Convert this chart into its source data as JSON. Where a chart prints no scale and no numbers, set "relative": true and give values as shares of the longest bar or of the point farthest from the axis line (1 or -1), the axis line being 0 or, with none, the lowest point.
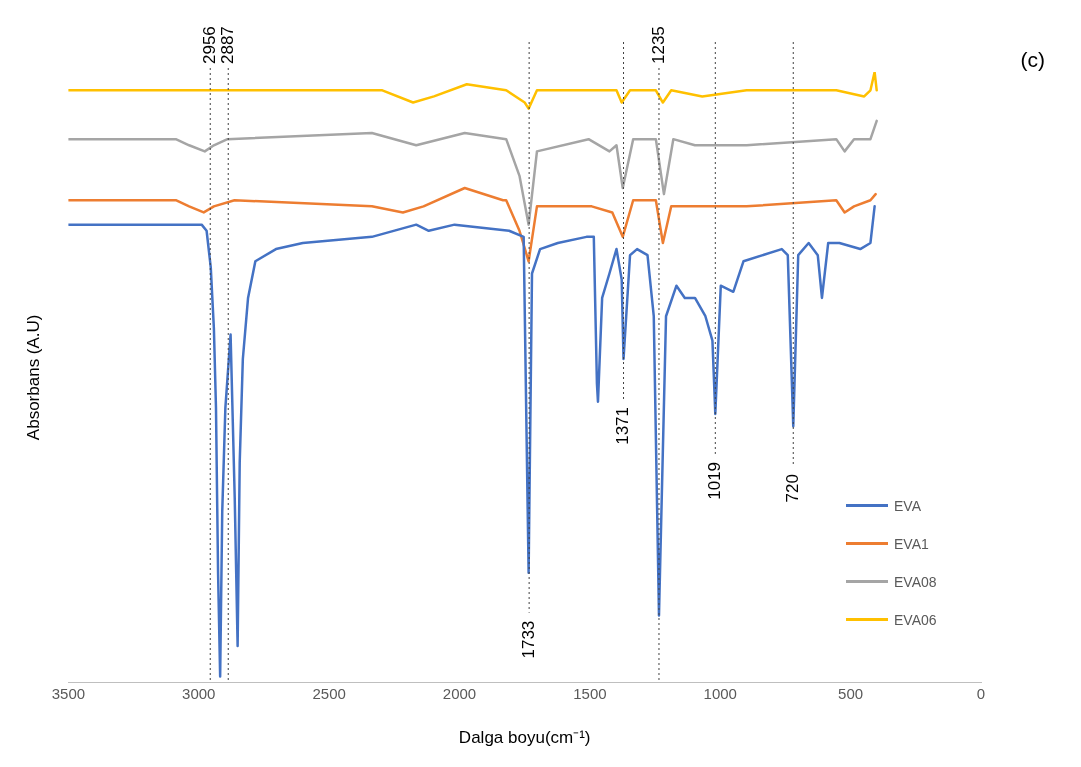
{
  "chart_data": {
    "type": "line",
    "relative": true,
    "xlabel": "Dalga boyu(cm⁻¹)",
    "ylabel": "Absorbans (A.U)",
    "annotations": [
      "(c)"
    ],
    "xlim": [
      3500,
      0
    ],
    "xticks": [
      3500,
      3000,
      2500,
      2000,
      1500,
      1000,
      500,
      0
    ],
    "grid": false,
    "legend": "bottom right",
    "marker": "none",
    "line_style": "solid",
    "series": [
      {
        "name": "EVA",
        "color": "#4472c4",
        "x": [
          3500,
          3088,
          2989,
          2970,
          2954,
          2942,
          2934,
          2926,
          2918,
          2910,
          2898,
          2878,
          2862,
          2851,
          2843,
          2831,
          2811,
          2783,
          2704,
          2601,
          2336,
          2166,
          2118,
          2019,
          1810,
          1754,
          1735,
          1722,
          1691,
          1623,
          1513,
          1485,
          1473,
          1469,
          1453,
          1425,
          1398,
          1378,
          1371,
          1346,
          1319,
          1279,
          1255,
          1235,
          1208,
          1168,
          1136,
          1097,
          1057,
          1030,
          1019,
          998,
          950,
          911,
          764,
          741,
          720,
          701,
          661,
          626,
          610,
          586,
          543,
          463,
          424,
          408
        ],
        "values": [
          0.75,
          0.75,
          0.75,
          0.74,
          0.68,
          0.58,
          0.45,
          0.18,
          0.01,
          0.28,
          0.45,
          0.57,
          0.3,
          0.06,
          0.36,
          0.53,
          0.63,
          0.69,
          0.71,
          0.72,
          0.73,
          0.75,
          0.74,
          0.75,
          0.74,
          0.73,
          0.18,
          0.67,
          0.71,
          0.72,
          0.73,
          0.73,
          0.49,
          0.46,
          0.63,
          0.67,
          0.71,
          0.66,
          0.53,
          0.7,
          0.71,
          0.7,
          0.6,
          0.11,
          0.6,
          0.65,
          0.63,
          0.63,
          0.6,
          0.56,
          0.44,
          0.65,
          0.64,
          0.69,
          0.71,
          0.7,
          0.42,
          0.7,
          0.72,
          0.7,
          0.63,
          0.72,
          0.72,
          0.71,
          0.72,
          0.78
        ]
      },
      {
        "name": "EVA1",
        "color": "#ed7d31",
        "x": [
          3500,
          3088,
          3037,
          2981,
          2942,
          2863,
          2336,
          2217,
          2138,
          1980,
          1833,
          1821,
          1770,
          1735,
          1703,
          1493,
          1414,
          1374,
          1334,
          1247,
          1220,
          1188,
          1081,
          899,
          555,
          523,
          487,
          424,
          404
        ],
        "values": [
          0.79,
          0.79,
          0.78,
          0.77,
          0.78,
          0.79,
          0.78,
          0.77,
          0.78,
          0.81,
          0.79,
          0.79,
          0.74,
          0.69,
          0.78,
          0.78,
          0.77,
          0.73,
          0.79,
          0.79,
          0.72,
          0.78,
          0.78,
          0.78,
          0.79,
          0.77,
          0.78,
          0.79,
          0.8
        ]
      },
      {
        "name": "EVA08",
        "color": "#a5a5a5",
        "x": [
          3500,
          3088,
          3037,
          2977,
          2942,
          2890,
          2336,
          2166,
          1980,
          1821,
          1770,
          1735,
          1703,
          1505,
          1425,
          1398,
          1374,
          1334,
          1247,
          1216,
          1180,
          1097,
          899,
          555,
          523,
          487,
          424,
          400
        ],
        "values": [
          0.89,
          0.89,
          0.88,
          0.87,
          0.88,
          0.89,
          0.9,
          0.88,
          0.9,
          0.89,
          0.83,
          0.75,
          0.87,
          0.89,
          0.87,
          0.88,
          0.81,
          0.89,
          0.89,
          0.8,
          0.89,
          0.88,
          0.88,
          0.89,
          0.87,
          0.89,
          0.89,
          0.92
        ]
      },
      {
        "name": "EVA06",
        "color": "#ffc000",
        "x": [
          3500,
          2296,
          2178,
          2098,
          1972,
          1821,
          1750,
          1735,
          1703,
          1398,
          1378,
          1346,
          1247,
          1220,
          1188,
          1069,
          899,
          555,
          448,
          424,
          408,
          400
        ],
        "values": [
          0.97,
          0.97,
          0.95,
          0.96,
          0.98,
          0.97,
          0.95,
          0.94,
          0.97,
          0.97,
          0.95,
          0.97,
          0.97,
          0.95,
          0.97,
          0.96,
          0.97,
          0.97,
          0.96,
          0.97,
          1.0,
          0.97
        ]
      }
    ],
    "ref_lines": [
      {
        "axis": "x",
        "value": 2956,
        "label": "2956",
        "color": "#404040",
        "line_style": "dotted"
      },
      {
        "axis": "x",
        "value": 2887,
        "label": "2887",
        "color": "#404040",
        "line_style": "dotted"
      },
      {
        "axis": "x",
        "value": 1733,
        "label": "1733",
        "color": "#404040",
        "line_style": "dotted"
      },
      {
        "axis": "x",
        "value": 1371,
        "label": "1371",
        "color": "#404040",
        "line_style": "dotted"
      },
      {
        "axis": "x",
        "value": 1235,
        "label": "1235",
        "color": "#404040",
        "line_style": "dotted"
      },
      {
        "axis": "x",
        "value": 1019,
        "label": "1019",
        "color": "#404040",
        "line_style": "dotted"
      },
      {
        "axis": "x",
        "value": 720,
        "label": "720",
        "color": "#404040",
        "line_style": "dotted"
      }
    ]
  }
}
